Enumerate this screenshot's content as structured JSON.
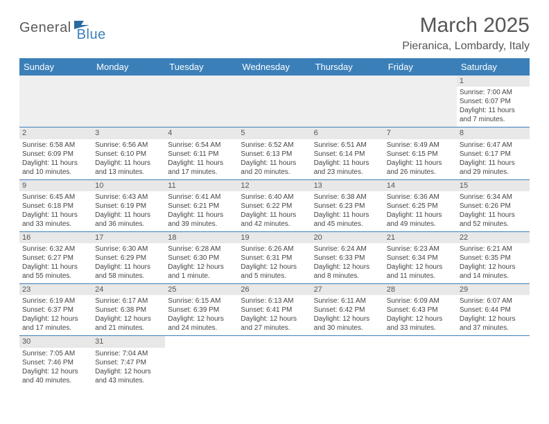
{
  "logo": {
    "general": "General",
    "blue": "Blue"
  },
  "title": "March 2025",
  "location": "Pieranica, Lombardy, Italy",
  "colors": {
    "header_bg": "#3b7fb8",
    "header_text": "#ffffff",
    "daynum_bg": "#e8e8e8",
    "border": "#3b7fb8",
    "text": "#444444",
    "title_text": "#555555"
  },
  "day_headers": [
    "Sunday",
    "Monday",
    "Tuesday",
    "Wednesday",
    "Thursday",
    "Friday",
    "Saturday"
  ],
  "weeks": [
    [
      null,
      null,
      null,
      null,
      null,
      null,
      {
        "n": "1",
        "sr": "Sunrise: 7:00 AM",
        "ss": "Sunset: 6:07 PM",
        "dl": "Daylight: 11 hours and 7 minutes."
      }
    ],
    [
      {
        "n": "2",
        "sr": "Sunrise: 6:58 AM",
        "ss": "Sunset: 6:09 PM",
        "dl": "Daylight: 11 hours and 10 minutes."
      },
      {
        "n": "3",
        "sr": "Sunrise: 6:56 AM",
        "ss": "Sunset: 6:10 PM",
        "dl": "Daylight: 11 hours and 13 minutes."
      },
      {
        "n": "4",
        "sr": "Sunrise: 6:54 AM",
        "ss": "Sunset: 6:11 PM",
        "dl": "Daylight: 11 hours and 17 minutes."
      },
      {
        "n": "5",
        "sr": "Sunrise: 6:52 AM",
        "ss": "Sunset: 6:13 PM",
        "dl": "Daylight: 11 hours and 20 minutes."
      },
      {
        "n": "6",
        "sr": "Sunrise: 6:51 AM",
        "ss": "Sunset: 6:14 PM",
        "dl": "Daylight: 11 hours and 23 minutes."
      },
      {
        "n": "7",
        "sr": "Sunrise: 6:49 AM",
        "ss": "Sunset: 6:15 PM",
        "dl": "Daylight: 11 hours and 26 minutes."
      },
      {
        "n": "8",
        "sr": "Sunrise: 6:47 AM",
        "ss": "Sunset: 6:17 PM",
        "dl": "Daylight: 11 hours and 29 minutes."
      }
    ],
    [
      {
        "n": "9",
        "sr": "Sunrise: 6:45 AM",
        "ss": "Sunset: 6:18 PM",
        "dl": "Daylight: 11 hours and 33 minutes."
      },
      {
        "n": "10",
        "sr": "Sunrise: 6:43 AM",
        "ss": "Sunset: 6:19 PM",
        "dl": "Daylight: 11 hours and 36 minutes."
      },
      {
        "n": "11",
        "sr": "Sunrise: 6:41 AM",
        "ss": "Sunset: 6:21 PM",
        "dl": "Daylight: 11 hours and 39 minutes."
      },
      {
        "n": "12",
        "sr": "Sunrise: 6:40 AM",
        "ss": "Sunset: 6:22 PM",
        "dl": "Daylight: 11 hours and 42 minutes."
      },
      {
        "n": "13",
        "sr": "Sunrise: 6:38 AM",
        "ss": "Sunset: 6:23 PM",
        "dl": "Daylight: 11 hours and 45 minutes."
      },
      {
        "n": "14",
        "sr": "Sunrise: 6:36 AM",
        "ss": "Sunset: 6:25 PM",
        "dl": "Daylight: 11 hours and 49 minutes."
      },
      {
        "n": "15",
        "sr": "Sunrise: 6:34 AM",
        "ss": "Sunset: 6:26 PM",
        "dl": "Daylight: 11 hours and 52 minutes."
      }
    ],
    [
      {
        "n": "16",
        "sr": "Sunrise: 6:32 AM",
        "ss": "Sunset: 6:27 PM",
        "dl": "Daylight: 11 hours and 55 minutes."
      },
      {
        "n": "17",
        "sr": "Sunrise: 6:30 AM",
        "ss": "Sunset: 6:29 PM",
        "dl": "Daylight: 11 hours and 58 minutes."
      },
      {
        "n": "18",
        "sr": "Sunrise: 6:28 AM",
        "ss": "Sunset: 6:30 PM",
        "dl": "Daylight: 12 hours and 1 minute."
      },
      {
        "n": "19",
        "sr": "Sunrise: 6:26 AM",
        "ss": "Sunset: 6:31 PM",
        "dl": "Daylight: 12 hours and 5 minutes."
      },
      {
        "n": "20",
        "sr": "Sunrise: 6:24 AM",
        "ss": "Sunset: 6:33 PM",
        "dl": "Daylight: 12 hours and 8 minutes."
      },
      {
        "n": "21",
        "sr": "Sunrise: 6:23 AM",
        "ss": "Sunset: 6:34 PM",
        "dl": "Daylight: 12 hours and 11 minutes."
      },
      {
        "n": "22",
        "sr": "Sunrise: 6:21 AM",
        "ss": "Sunset: 6:35 PM",
        "dl": "Daylight: 12 hours and 14 minutes."
      }
    ],
    [
      {
        "n": "23",
        "sr": "Sunrise: 6:19 AM",
        "ss": "Sunset: 6:37 PM",
        "dl": "Daylight: 12 hours and 17 minutes."
      },
      {
        "n": "24",
        "sr": "Sunrise: 6:17 AM",
        "ss": "Sunset: 6:38 PM",
        "dl": "Daylight: 12 hours and 21 minutes."
      },
      {
        "n": "25",
        "sr": "Sunrise: 6:15 AM",
        "ss": "Sunset: 6:39 PM",
        "dl": "Daylight: 12 hours and 24 minutes."
      },
      {
        "n": "26",
        "sr": "Sunrise: 6:13 AM",
        "ss": "Sunset: 6:41 PM",
        "dl": "Daylight: 12 hours and 27 minutes."
      },
      {
        "n": "27",
        "sr": "Sunrise: 6:11 AM",
        "ss": "Sunset: 6:42 PM",
        "dl": "Daylight: 12 hours and 30 minutes."
      },
      {
        "n": "28",
        "sr": "Sunrise: 6:09 AM",
        "ss": "Sunset: 6:43 PM",
        "dl": "Daylight: 12 hours and 33 minutes."
      },
      {
        "n": "29",
        "sr": "Sunrise: 6:07 AM",
        "ss": "Sunset: 6:44 PM",
        "dl": "Daylight: 12 hours and 37 minutes."
      }
    ],
    [
      {
        "n": "30",
        "sr": "Sunrise: 7:05 AM",
        "ss": "Sunset: 7:46 PM",
        "dl": "Daylight: 12 hours and 40 minutes."
      },
      {
        "n": "31",
        "sr": "Sunrise: 7:04 AM",
        "ss": "Sunset: 7:47 PM",
        "dl": "Daylight: 12 hours and 43 minutes."
      },
      null,
      null,
      null,
      null,
      null
    ]
  ]
}
